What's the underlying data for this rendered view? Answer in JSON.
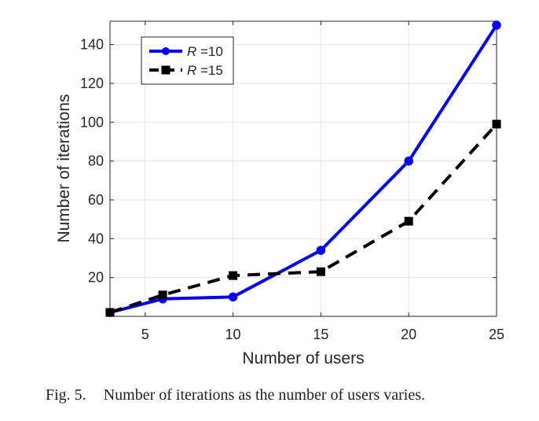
{
  "chart_data": {
    "type": "line",
    "title": "",
    "xlabel": "Number of users",
    "ylabel": "Number of iterations",
    "xlim": [
      3,
      25
    ],
    "ylim": [
      0,
      152
    ],
    "xticks": [
      5,
      10,
      15,
      20,
      25
    ],
    "yticks": [
      20,
      40,
      60,
      80,
      100,
      120,
      140
    ],
    "grid": true,
    "legend_position": "top-left",
    "series": [
      {
        "name": "R =10",
        "legend_var": "R",
        "legend_suffix": " =10",
        "color": "#0000ff",
        "line_style": "solid",
        "marker": "circle",
        "x": [
          3,
          6,
          10,
          15,
          20,
          25
        ],
        "y": [
          2,
          9,
          10,
          34,
          80,
          150
        ]
      },
      {
        "name": "R =15",
        "legend_var": "R",
        "legend_suffix": " =15",
        "color": "#000000",
        "line_style": "dashed",
        "marker": "square",
        "x": [
          3,
          6,
          10,
          15,
          20,
          25
        ],
        "y": [
          2,
          11,
          21,
          23,
          49,
          99
        ]
      }
    ]
  },
  "caption": {
    "label": "Fig. 5.",
    "text": "Number of iterations as the number of users varies."
  }
}
